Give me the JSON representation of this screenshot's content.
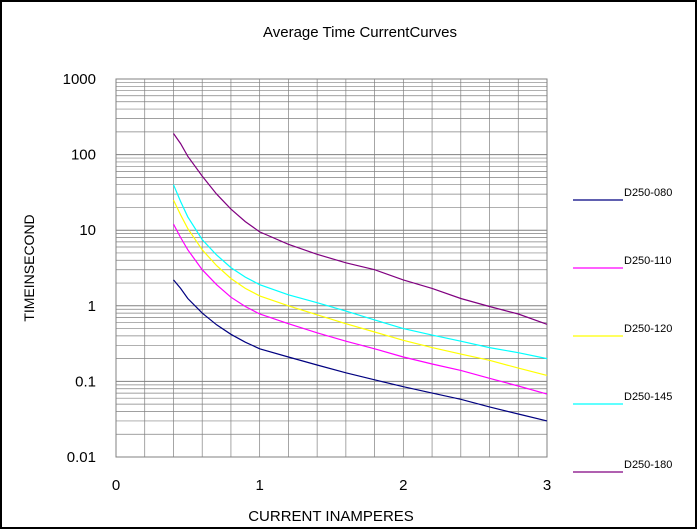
{
  "chart_data": {
    "type": "line",
    "title": "Average Time CurrentCurves",
    "xlabel": "CURRENT INAMPERES",
    "ylabel": "TIMEINSECOND",
    "xlim": [
      0,
      3
    ],
    "ylim": [
      0.01,
      1000
    ],
    "y_scale": "log",
    "x_ticks": [
      "0",
      "1",
      "2",
      "3"
    ],
    "y_ticks": [
      "0.01",
      "0.1",
      "1",
      "10",
      "100",
      "1000"
    ],
    "grid": true,
    "legend_position": "right",
    "x": [
      0.4,
      0.45,
      0.5,
      0.6,
      0.7,
      0.8,
      0.9,
      1.0,
      1.2,
      1.4,
      1.6,
      1.8,
      2.0,
      2.2,
      2.4,
      2.6,
      2.8,
      3.0
    ],
    "series": [
      {
        "name": "D250-080",
        "color": "#000080",
        "values": [
          2.2,
          1.7,
          1.25,
          0.8,
          0.56,
          0.42,
          0.33,
          0.27,
          0.21,
          0.165,
          0.13,
          0.105,
          0.085,
          0.07,
          0.058,
          0.046,
          0.037,
          0.03
        ]
      },
      {
        "name": "D250-110",
        "color": "#ff00ff",
        "values": [
          12,
          8,
          5.5,
          3.0,
          1.9,
          1.3,
          0.98,
          0.78,
          0.58,
          0.44,
          0.34,
          0.27,
          0.21,
          0.17,
          0.14,
          0.11,
          0.087,
          0.068
        ]
      },
      {
        "name": "D250-120",
        "color": "#ffff00",
        "values": [
          25,
          16,
          10.5,
          5.5,
          3.4,
          2.3,
          1.7,
          1.35,
          1.0,
          0.76,
          0.58,
          0.45,
          0.35,
          0.28,
          0.23,
          0.19,
          0.15,
          0.12
        ]
      },
      {
        "name": "D250-145",
        "color": "#00ffff",
        "values": [
          40,
          24,
          15,
          7.5,
          4.7,
          3.2,
          2.4,
          1.9,
          1.4,
          1.1,
          0.85,
          0.65,
          0.5,
          0.41,
          0.34,
          0.28,
          0.24,
          0.2
        ]
      },
      {
        "name": "D250-180",
        "color": "#800080",
        "values": [
          190,
          140,
          95,
          52,
          30,
          19,
          13,
          9.5,
          6.5,
          4.8,
          3.7,
          3.0,
          2.2,
          1.7,
          1.25,
          0.98,
          0.78,
          0.57
        ]
      }
    ]
  }
}
